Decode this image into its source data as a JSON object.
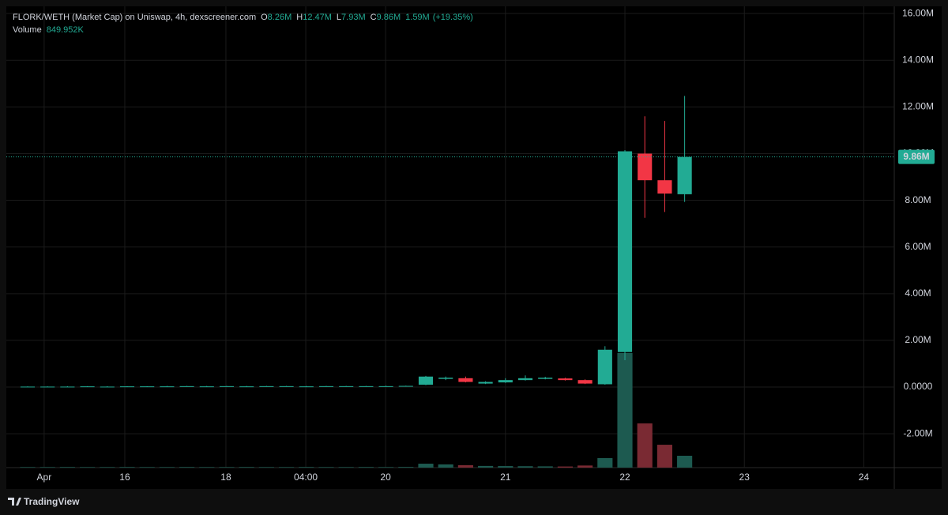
{
  "chart_data": {
    "type": "candlestick",
    "legend": {
      "title": "FLORK/WETH (Market Cap) on Uniswap, 4h, dexscreener.com",
      "ohlc_names": [
        "O",
        "H",
        "L",
        "C"
      ],
      "ohlc_values": [
        "8.26M",
        "12.47M",
        "7.93M",
        "9.86M"
      ],
      "change": "1.59M",
      "change_pct": "(+19.35%)",
      "volume_name": "Volume"
    },
    "x": [
      1,
      2,
      3,
      4,
      5,
      6,
      7,
      8,
      9,
      10,
      11,
      12,
      13,
      14,
      15,
      16,
      17,
      18,
      19,
      20,
      21,
      22,
      23,
      24,
      25,
      26,
      27,
      28,
      29,
      30,
      31,
      32,
      33,
      34
    ],
    "open": [
      0.01,
      0.01,
      0.02,
      0.02,
      0.02,
      0.02,
      0.02,
      0.03,
      0.03,
      0.03,
      0.03,
      0.03,
      0.03,
      0.03,
      0.03,
      0.03,
      0.03,
      0.03,
      0.04,
      0.04,
      0.1,
      0.35,
      0.38,
      0.15,
      0.2,
      0.3,
      0.35,
      0.37,
      0.3,
      0.12,
      1.5,
      10.0,
      8.86,
      8.26
    ],
    "high": [
      0.03,
      0.03,
      0.04,
      0.04,
      0.04,
      0.04,
      0.04,
      0.05,
      0.05,
      0.05,
      0.05,
      0.05,
      0.05,
      0.05,
      0.05,
      0.05,
      0.05,
      0.05,
      0.06,
      0.06,
      0.48,
      0.45,
      0.45,
      0.25,
      0.38,
      0.5,
      0.44,
      0.4,
      0.33,
      1.75,
      10.15,
      11.6,
      11.4,
      12.47
    ],
    "low": [
      0.0,
      0.0,
      0.01,
      0.01,
      0.01,
      0.01,
      0.01,
      0.02,
      0.02,
      0.02,
      0.02,
      0.02,
      0.02,
      0.02,
      0.02,
      0.02,
      0.02,
      0.02,
      0.03,
      0.03,
      0.08,
      0.3,
      0.2,
      0.13,
      0.18,
      0.28,
      0.33,
      0.28,
      0.13,
      0.1,
      1.15,
      7.25,
      7.5,
      7.93
    ],
    "close": [
      0.02,
      0.02,
      0.02,
      0.03,
      0.02,
      0.03,
      0.03,
      0.03,
      0.04,
      0.03,
      0.04,
      0.03,
      0.04,
      0.04,
      0.03,
      0.04,
      0.04,
      0.04,
      0.04,
      0.05,
      0.45,
      0.4,
      0.22,
      0.22,
      0.3,
      0.38,
      0.4,
      0.3,
      0.15,
      1.6,
      10.1,
      8.86,
      8.29,
      9.86
    ],
    "up_color": "#22ab94",
    "down_color": "#f23645",
    "volume": {
      "values": [
        40000,
        40000,
        45000,
        40000,
        40000,
        45000,
        40000,
        40000,
        45000,
        40000,
        40000,
        45000,
        40000,
        40000,
        45000,
        40000,
        40000,
        45000,
        40000,
        50000,
        280000,
        230000,
        170000,
        120000,
        110000,
        100000,
        90000,
        80000,
        150000,
        680000,
        8220000,
        3170000,
        1640000,
        849952
      ],
      "value_labels": [
        null,
        null,
        null,
        null,
        null,
        null,
        null,
        null,
        null,
        null,
        null,
        null,
        null,
        null,
        null,
        null,
        null,
        null,
        null,
        null,
        null,
        null,
        null,
        null,
        null,
        null,
        null,
        null,
        null,
        null,
        null,
        null,
        null,
        "849.952K"
      ],
      "ylim": [
        0,
        33100000
      ],
      "up_color": "#1d5a50",
      "down_color": "#7a2a33"
    },
    "last_price": {
      "value": 9.86,
      "label": "9.86M"
    },
    "xlim": [
      -0.07,
      44.53
    ],
    "xticks": [
      {
        "value": 1.83,
        "label": "Apr"
      },
      {
        "value": 5.88,
        "label": "16"
      },
      {
        "value": 10.96,
        "label": "18"
      },
      {
        "value": 14.97,
        "label": "04:00"
      },
      {
        "value": 18.98,
        "label": "20"
      },
      {
        "value": 25.0,
        "label": "21"
      },
      {
        "value": 31.0,
        "label": "22"
      },
      {
        "value": 37.0,
        "label": "23"
      },
      {
        "value": 43.0,
        "label": "24"
      }
    ],
    "ylim": [
      -3.45,
      16.31
    ],
    "yticks": [
      {
        "value": 16,
        "label": "16.00M"
      },
      {
        "value": 14,
        "label": "14.00M"
      },
      {
        "value": 12,
        "label": "12.00M"
      },
      {
        "value": 10,
        "label": "10.00M"
      },
      {
        "value": 8,
        "label": "8.00M"
      },
      {
        "value": 6,
        "label": "6.00M"
      },
      {
        "value": 4,
        "label": "4.00M"
      },
      {
        "value": 2,
        "label": "2.00M"
      },
      {
        "value": 0,
        "label": "0.0000"
      },
      {
        "value": -2,
        "label": "-2.00M"
      }
    ],
    "grid": true,
    "footer": "TradingView"
  }
}
